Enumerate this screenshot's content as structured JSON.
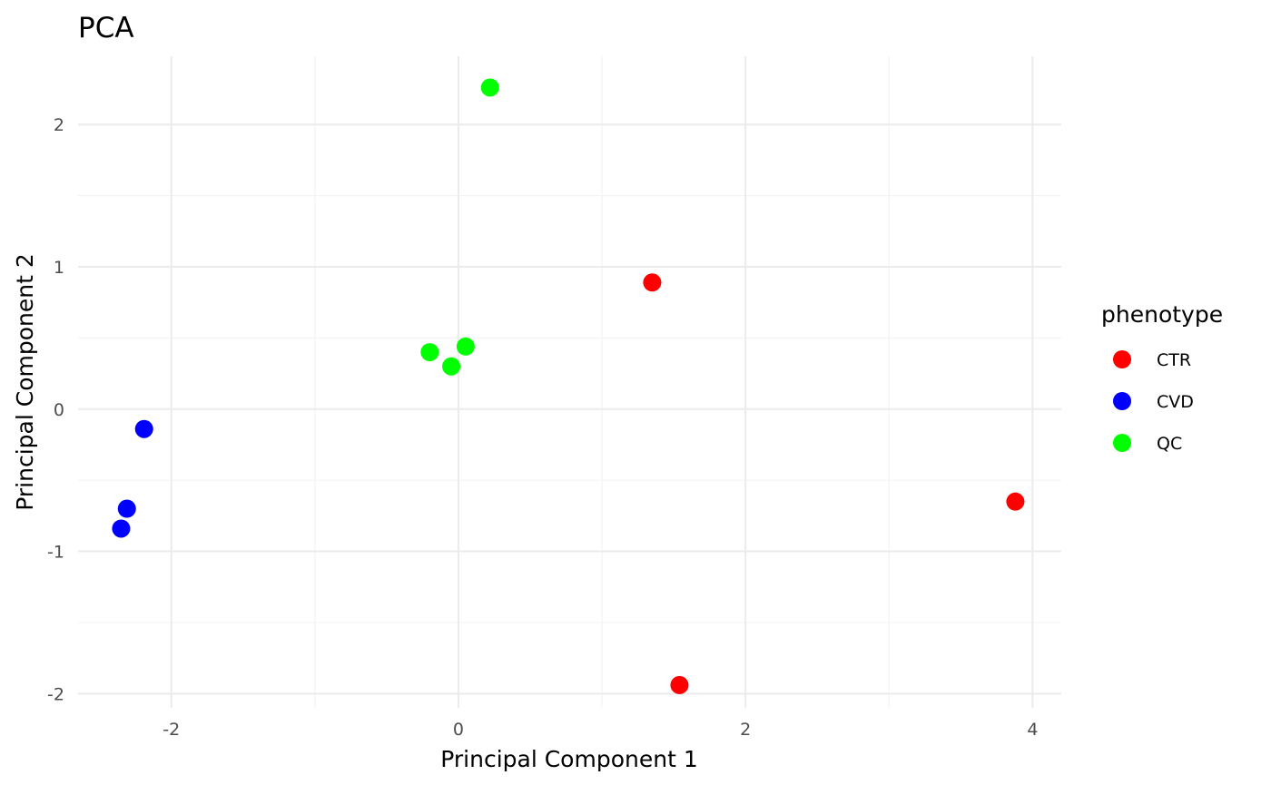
{
  "chart_data": {
    "type": "scatter",
    "title": "PCA",
    "xlabel": "Principal Component 1",
    "ylabel": "Principal Component 2",
    "xlim": [
      -2.65,
      4.2
    ],
    "ylim": [
      -2.1,
      2.48
    ],
    "x_ticks": [
      -2,
      0,
      2,
      4
    ],
    "y_ticks": [
      -2,
      -1,
      0,
      1,
      2
    ],
    "x_minor": [
      -3,
      -1,
      1,
      3
    ],
    "y_minor": [
      -1.5,
      -0.5,
      0.5,
      1.5
    ],
    "grid": true,
    "legend": {
      "title": "phenotype",
      "position": "right"
    },
    "series": [
      {
        "name": "CTR",
        "color": "#FF0000",
        "points": [
          [
            1.35,
            0.89
          ],
          [
            3.88,
            -0.65
          ],
          [
            1.54,
            -1.94
          ]
        ]
      },
      {
        "name": "CVD",
        "color": "#0000FF",
        "points": [
          [
            -2.19,
            -0.14
          ],
          [
            -2.31,
            -0.7
          ],
          [
            -2.35,
            -0.84
          ]
        ]
      },
      {
        "name": "QC",
        "color": "#00FF00",
        "points": [
          [
            0.22,
            2.26
          ],
          [
            -0.2,
            0.4
          ],
          [
            0.05,
            0.44
          ],
          [
            -0.05,
            0.3
          ]
        ]
      }
    ]
  }
}
